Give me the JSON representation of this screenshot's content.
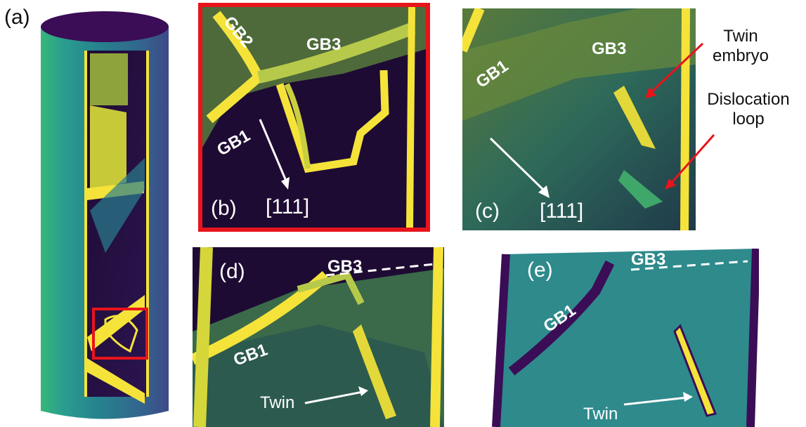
{
  "panels": {
    "a": {
      "label": "(a)"
    },
    "b": {
      "label": "(b)",
      "gb2": "GB2",
      "gb3": "GB3",
      "gb1": "GB1",
      "direction": "[111]"
    },
    "c": {
      "label": "(c)",
      "gb1": "GB1",
      "gb3": "GB3",
      "direction": "[111]",
      "twin_embryo": "Twin embryo",
      "dislocation_loop": "Dislocation loop"
    },
    "d": {
      "label": "(d)",
      "gb3": "GB3",
      "gb1": "GB1",
      "twin": "Twin"
    },
    "e": {
      "label": "(e)",
      "gb3": "GB3",
      "gb1": "GB1",
      "twin": "Twin"
    }
  },
  "colors": {
    "atom_yellow": "#f5e33a",
    "bulk_dark": "#1e0b33",
    "teal": "#2f8a8c",
    "deep_purple": "#3b0d57",
    "highlight_red": "#e8141b",
    "arrow_white": "#ffffff"
  }
}
